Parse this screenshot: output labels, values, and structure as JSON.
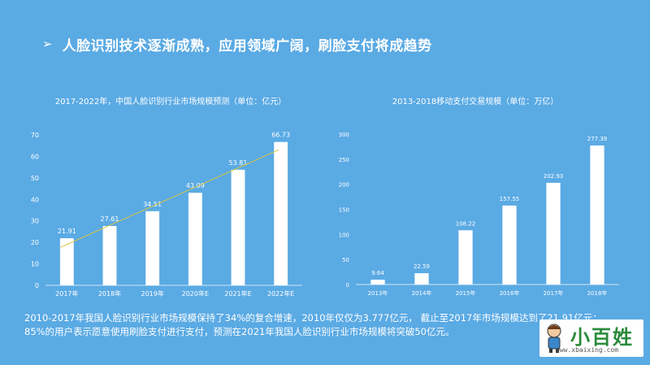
{
  "heading": {
    "bullet": "➢",
    "text": "人脸识别技术逐渐成熟，应用领域广阔，刷脸支付将成趋势"
  },
  "chart_data": [
    {
      "type": "bar",
      "title": "2017-2022年，中国人脸识别行业市场规模预测（单位：亿元）",
      "categories": [
        "2017年",
        "2018年",
        "2019年",
        "2020年E",
        "2021年E",
        "2022年E"
      ],
      "values": [
        21.91,
        27.61,
        34.51,
        43.09,
        53.81,
        66.73
      ],
      "data_labels": [
        "21.91",
        "27.61",
        "34.51",
        "43.09",
        "53.81",
        "66.73"
      ],
      "ylim": [
        0,
        70
      ],
      "yticks": [
        0,
        10,
        20,
        30,
        40,
        50,
        60,
        70
      ],
      "grid": false,
      "trendline": true,
      "colors": {
        "bar": "#ffffff",
        "trend": "#d9c53e",
        "axis": "#cfe5f6"
      }
    },
    {
      "type": "bar",
      "title": "2013-2018移动支付交易规模（单位：万亿）",
      "categories": [
        "2013年",
        "2014年",
        "2015年",
        "2016年",
        "2017年",
        "2018年"
      ],
      "values": [
        9.64,
        22.59,
        108.22,
        157.55,
        202.93,
        277.39
      ],
      "data_labels": [
        "9.64",
        "22.59",
        "108.22",
        "157.55",
        "202.93",
        "277.39"
      ],
      "ylim": [
        0,
        300
      ],
      "yticks": [
        0,
        50,
        100,
        150,
        200,
        250,
        300
      ],
      "grid": false,
      "colors": {
        "bar": "#ffffff",
        "axis": "#cfe5f6"
      }
    }
  ],
  "summary": {
    "line1": "2010-2017年我国人脸识别行业市场规模保持了34%的复合增速，2010年仅仅为3.777亿元， 截止至2017年市场规模达到了21.91亿元；",
    "line2": "85%的用户表示愿意使用刷脸支付进行支付，预测在2021年我国人脸识别行业市场规模将突破50亿元。"
  },
  "watermark": {
    "name": "小百姓",
    "url": "www.xbaixing.com"
  }
}
